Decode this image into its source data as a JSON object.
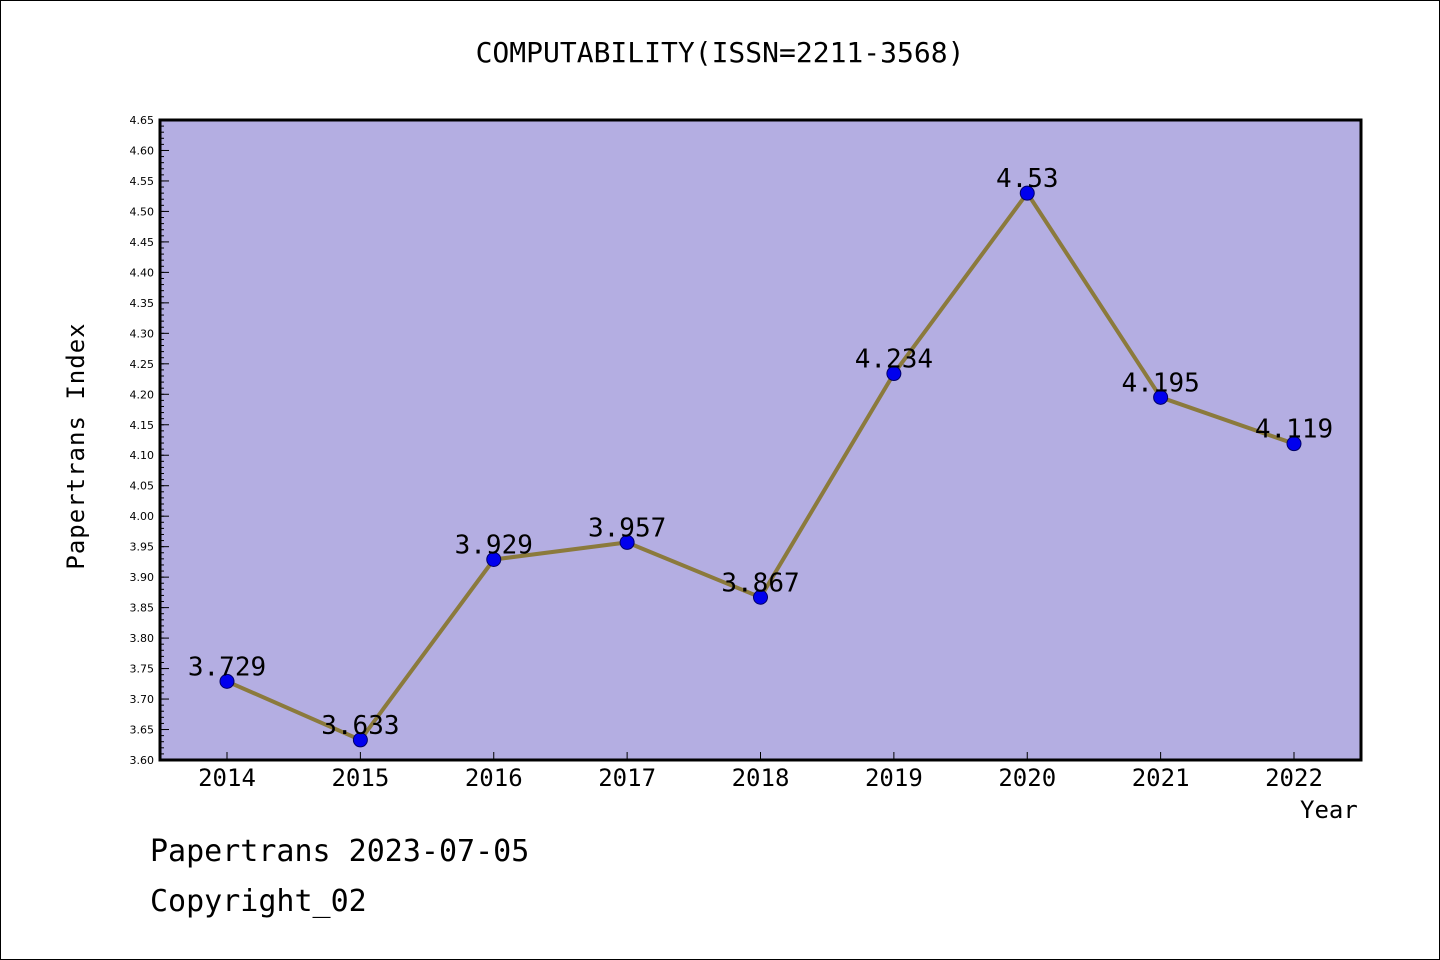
{
  "chart_data": {
    "type": "line",
    "title": "COMPUTABILITY(ISSN=2211-3568)",
    "xlabel": "Year",
    "ylabel": "Papertrans Index",
    "categories": [
      "2014",
      "2015",
      "2016",
      "2017",
      "2018",
      "2019",
      "2020",
      "2021",
      "2022"
    ],
    "series": [
      {
        "values": [
          3.729,
          3.633,
          3.929,
          3.957,
          3.867,
          4.234,
          4.53,
          4.195,
          4.119
        ]
      }
    ],
    "data_labels": [
      "3.729",
      "3.633",
      "3.929",
      "3.957",
      "3.867",
      "4.234",
      "4.53",
      "4.195",
      "4.119"
    ],
    "ylim": [
      3.6,
      4.65
    ],
    "yticks": [
      "3.60",
      "3.65",
      "3.70",
      "3.75",
      "3.80",
      "3.85",
      "3.90",
      "3.95",
      "4.00",
      "4.05",
      "4.10",
      "4.15",
      "4.20",
      "4.25",
      "4.30",
      "4.35",
      "4.40",
      "4.45",
      "4.50",
      "4.55",
      "4.60",
      "4.65"
    ],
    "grid": false,
    "colors": {
      "plot_background": "#b4aee2",
      "line": "#8b7a3c",
      "marker": "#0000ee",
      "axis": "#000000"
    }
  },
  "footer": {
    "line1": "Papertrans 2023-07-05",
    "line2": "Copyright_02"
  }
}
